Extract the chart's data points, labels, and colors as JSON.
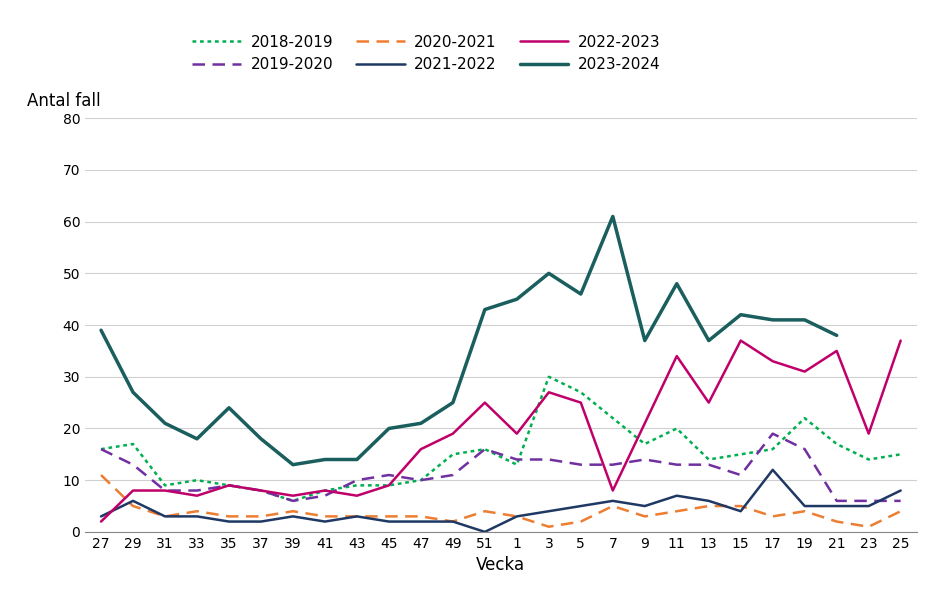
{
  "title": "",
  "ylabel": "Antal fall",
  "xlabel": "Vecka",
  "xlim_labels": [
    "27",
    "29",
    "31",
    "33",
    "35",
    "37",
    "39",
    "41",
    "43",
    "45",
    "47",
    "49",
    "51",
    "1",
    "3",
    "5",
    "7",
    "9",
    "11",
    "13",
    "15",
    "17",
    "19",
    "21",
    "23",
    "25"
  ],
  "ylim": [
    0,
    80
  ],
  "yticks": [
    0,
    10,
    20,
    30,
    40,
    50,
    60,
    70,
    80
  ],
  "background_color": "#ffffff",
  "series": {
    "2018-2019": {
      "color": "#00B050",
      "linestyle": "dotted",
      "linewidth": 1.8,
      "data": [
        16,
        17,
        9,
        10,
        9,
        8,
        6,
        8,
        9,
        9,
        10,
        15,
        16,
        13,
        30,
        27,
        22,
        17,
        20,
        14,
        15,
        16,
        22,
        17,
        14,
        15
      ]
    },
    "2019-2020": {
      "color": "#7030A0",
      "linestyle": "dashed",
      "linewidth": 1.8,
      "data": [
        16,
        13,
        8,
        8,
        9,
        8,
        6,
        7,
        10,
        11,
        10,
        11,
        16,
        14,
        14,
        13,
        13,
        14,
        13,
        13,
        11,
        19,
        16,
        6,
        6,
        6
      ]
    },
    "2020-2021": {
      "color": "#ED7D31",
      "linestyle": "dashed",
      "linewidth": 1.8,
      "data": [
        11,
        5,
        3,
        4,
        3,
        3,
        4,
        3,
        3,
        3,
        3,
        2,
        4,
        3,
        1,
        2,
        5,
        3,
        4,
        5,
        5,
        3,
        4,
        2,
        1,
        4
      ]
    },
    "2021-2022": {
      "color": "#1F3864",
      "linestyle": "solid",
      "linewidth": 1.8,
      "data": [
        3,
        6,
        3,
        3,
        2,
        2,
        3,
        2,
        3,
        2,
        2,
        2,
        0,
        3,
        4,
        5,
        6,
        5,
        7,
        6,
        4,
        12,
        5,
        5,
        5,
        8
      ]
    },
    "2022-2023": {
      "color": "#C0006A",
      "linestyle": "solid",
      "linewidth": 1.8,
      "data": [
        2,
        8,
        8,
        7,
        9,
        8,
        7,
        8,
        7,
        9,
        16,
        19,
        25,
        19,
        27,
        25,
        8,
        21,
        34,
        25,
        37,
        33,
        31,
        35,
        19,
        37
      ]
    },
    "2023-2024": {
      "color": "#1A5E5E",
      "linestyle": "solid",
      "linewidth": 2.5,
      "data": [
        39,
        27,
        21,
        18,
        24,
        18,
        13,
        14,
        14,
        20,
        21,
        25,
        43,
        45,
        50,
        46,
        61,
        37,
        48,
        37,
        42,
        41,
        41,
        38,
        null,
        null
      ]
    }
  },
  "legend_order": [
    "2018-2019",
    "2019-2020",
    "2020-2021",
    "2021-2022",
    "2022-2023",
    "2023-2024"
  ]
}
